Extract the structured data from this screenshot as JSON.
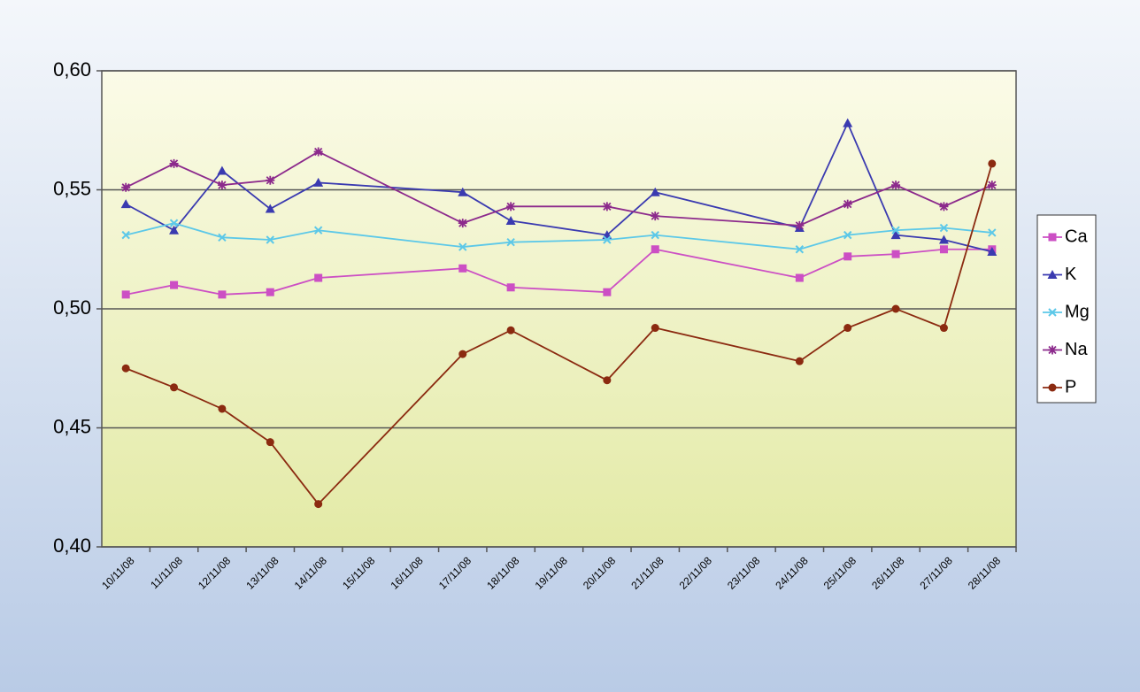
{
  "chart_data": {
    "type": "line",
    "x": [
      "10/11/08",
      "11/11/08",
      "12/11/08",
      "13/11/08",
      "14/11/08",
      "17/11/08",
      "18/11/08",
      "20/11/08",
      "21/11/08",
      "24/11/08",
      "25/11/08",
      "26/11/08",
      "27/11/08",
      "28/11/08"
    ],
    "xticks": [
      "10/11/08",
      "11/11/08",
      "12/11/08",
      "13/11/08",
      "14/11/08",
      "15/11/08",
      "16/11/08",
      "17/11/08",
      "18/11/08",
      "19/11/08",
      "20/11/08",
      "21/11/08",
      "22/11/08",
      "23/11/08",
      "24/11/08",
      "25/11/08",
      "26/11/08",
      "27/11/08",
      "28/11/08"
    ],
    "series": [
      {
        "name": "Ca",
        "color": "#cc4fc4",
        "marker": "square",
        "values": [
          0.506,
          0.51,
          0.506,
          0.507,
          0.513,
          0.517,
          0.509,
          0.507,
          0.525,
          0.513,
          0.522,
          0.523,
          0.525,
          0.525
        ]
      },
      {
        "name": "K",
        "color": "#3a3ab0",
        "marker": "triangle",
        "values": [
          0.544,
          0.533,
          0.558,
          0.542,
          0.553,
          0.549,
          0.537,
          0.531,
          0.549,
          0.534,
          0.578,
          0.531,
          0.529,
          0.524
        ]
      },
      {
        "name": "Mg",
        "color": "#5cc8e8",
        "marker": "x",
        "values": [
          0.531,
          0.536,
          0.53,
          0.529,
          0.533,
          0.526,
          0.528,
          0.529,
          0.531,
          0.525,
          0.531,
          0.533,
          0.534,
          0.532
        ]
      },
      {
        "name": "Na",
        "color": "#8c2a8c",
        "marker": "star",
        "values": [
          0.551,
          0.561,
          0.552,
          0.554,
          0.566,
          0.536,
          0.543,
          0.543,
          0.539,
          0.535,
          0.544,
          0.552,
          0.543,
          0.552
        ]
      },
      {
        "name": "P",
        "color": "#8b2a10",
        "marker": "circle",
        "values": [
          0.475,
          0.467,
          0.458,
          0.444,
          0.418,
          0.481,
          0.491,
          0.47,
          0.492,
          0.478,
          0.492,
          0.5,
          0.492,
          0.561
        ]
      }
    ],
    "ylim": [
      0.4,
      0.6
    ],
    "yticks": [
      {
        "value": 0.4,
        "label": "0,40"
      },
      {
        "value": 0.45,
        "label": "0,45"
      },
      {
        "value": 0.5,
        "label": "0,50"
      },
      {
        "value": 0.55,
        "label": "0,55"
      },
      {
        "value": 0.6,
        "label": "0,60"
      }
    ],
    "grid": true,
    "legend": "right"
  }
}
